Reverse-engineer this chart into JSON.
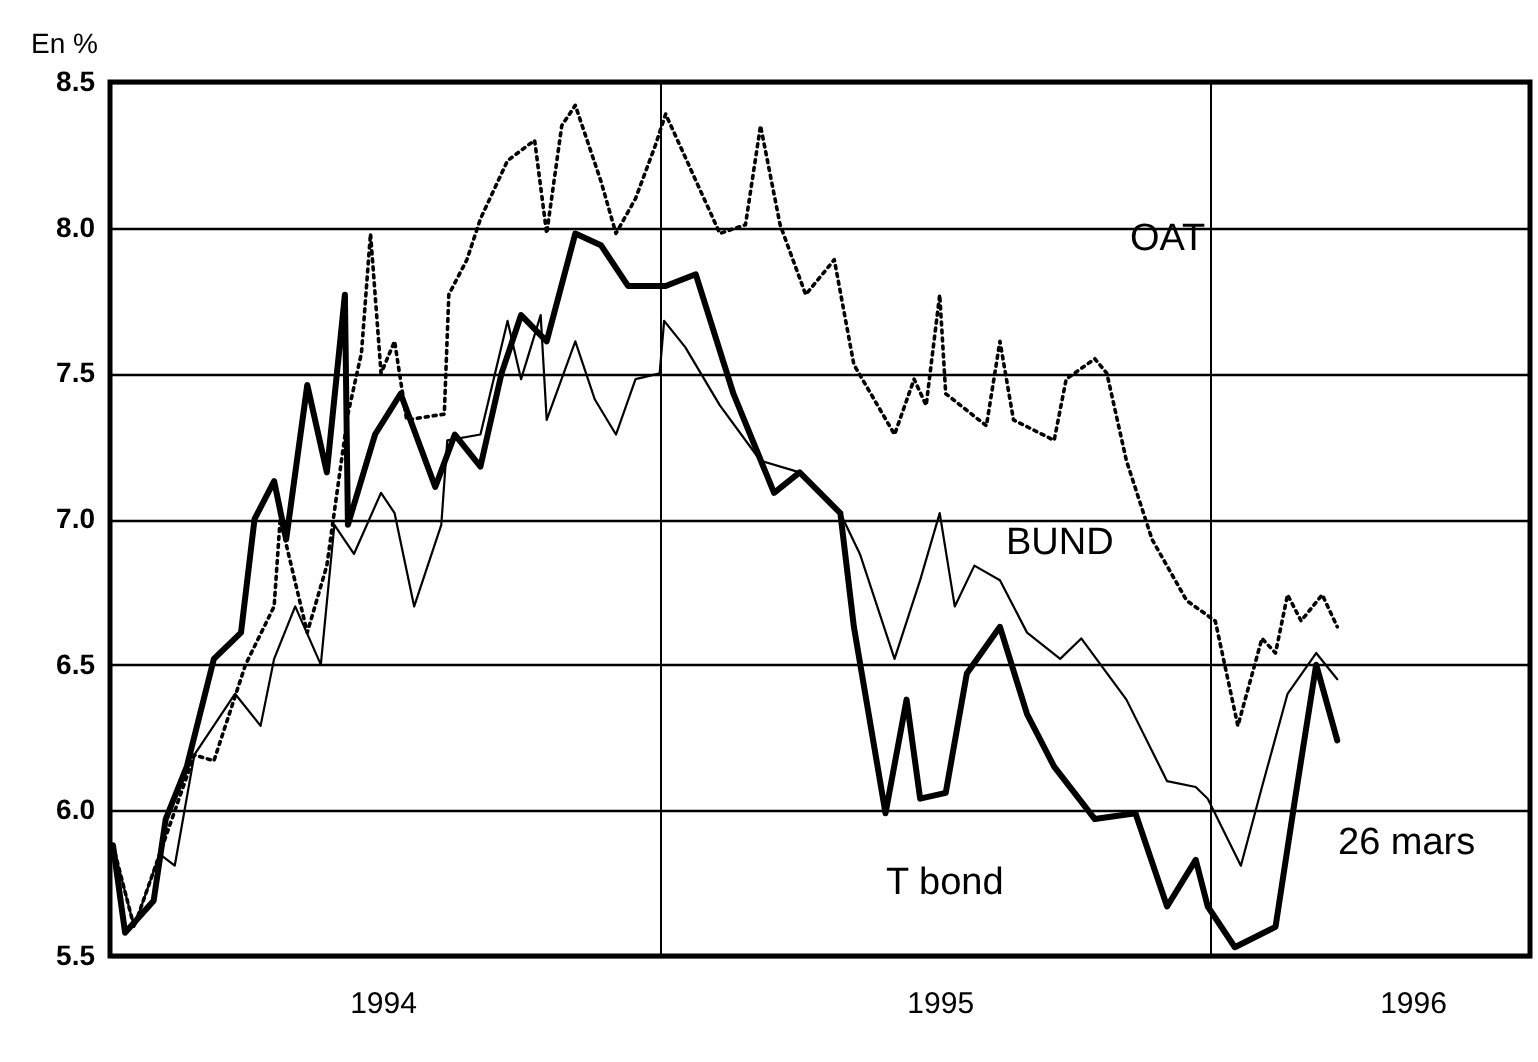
{
  "chart_data": {
    "type": "line",
    "ylabel": "En %",
    "ylim": [
      5.5,
      8.5
    ],
    "yticks": [
      5.5,
      {
        "value": 6,
        "label": "6.0"
      },
      6.5,
      {
        "value": 7,
        "label": "7.0"
      },
      7.5,
      {
        "value": 8,
        "label": "8.0"
      },
      8.5
    ],
    "xlim": [
      "1994-01-01",
      "1996-08-01"
    ],
    "xticks": [
      {
        "value": "1994-07-01",
        "label": "1994"
      },
      {
        "value": "1995-01-01",
        "label": null
      },
      {
        "value": "1995-07-06",
        "label": "1995"
      },
      {
        "value": "1996-01-01",
        "label": null
      },
      {
        "value": "1996-05-15",
        "label": "1996"
      }
    ],
    "grid": true,
    "legend": false,
    "marker": "none",
    "series": [
      {
        "name": "OAT",
        "color": "#000000",
        "line_style": "dotted",
        "x": [
          "1994-01-03",
          "1994-01-17",
          "1994-02-03",
          "1994-02-26",
          "1994-03-11",
          "1994-04-01",
          "1994-04-20",
          "1994-04-24",
          "1994-05-12",
          "1994-05-25",
          "1994-06-08",
          "1994-06-17",
          "1994-06-23",
          "1994-06-30",
          "1994-07-09",
          "1994-07-17",
          "1994-08-11",
          "1994-08-14",
          "1994-08-26",
          "1994-09-04",
          "1994-09-22",
          "1994-10-10",
          "1994-10-18",
          "1994-10-28",
          "1994-11-06",
          "1994-11-23",
          "1994-12-03",
          "1994-12-16",
          "1994-12-29",
          "1995-01-05",
          "1995-02-10",
          "1995-02-27",
          "1995-03-09",
          "1995-03-22",
          "1995-04-08",
          "1995-04-27",
          "1995-05-10",
          "1995-06-06",
          "1995-06-19",
          "1995-06-27",
          "1995-07-06",
          "1995-07-10",
          "1995-08-06",
          "1995-08-15",
          "1995-08-24",
          "1995-09-20",
          "1995-09-28",
          "1995-10-17",
          "1995-10-25",
          "1995-11-07",
          "1995-11-24",
          "1995-12-17",
          "1996-01-05",
          "1996-01-20",
          "1996-02-05",
          "1996-02-14",
          "1996-02-22",
          "1996-03-02",
          "1996-03-16",
          "1996-03-26"
        ],
        "values": [
          5.88,
          5.6,
          5.85,
          6.19,
          6.17,
          6.5,
          6.7,
          7.0,
          6.61,
          6.84,
          7.36,
          7.57,
          7.98,
          7.5,
          7.61,
          7.34,
          7.36,
          7.77,
          7.89,
          8.03,
          8.23,
          8.3,
          7.98,
          8.35,
          8.42,
          8.16,
          7.98,
          8.1,
          8.28,
          8.39,
          7.98,
          8.01,
          8.35,
          8.01,
          7.77,
          7.89,
          7.53,
          7.29,
          7.48,
          7.39,
          7.77,
          7.43,
          7.32,
          7.61,
          7.34,
          7.27,
          7.48,
          7.55,
          7.5,
          7.2,
          6.93,
          6.72,
          6.65,
          6.29,
          6.59,
          6.54,
          6.74,
          6.65,
          6.74,
          6.63
        ]
      },
      {
        "name": "BUND",
        "color": "#000000",
        "line_style": "solid",
        "x": [
          "1994-01-03",
          "1994-01-17",
          "1994-02-03",
          "1994-02-13",
          "1994-02-26",
          "1994-03-25",
          "1994-04-11",
          "1994-04-20",
          "1994-05-04",
          "1994-05-21",
          "1994-05-30",
          "1994-06-12",
          "1994-06-30",
          "1994-07-09",
          "1994-07-22",
          "1994-08-09",
          "1994-08-13",
          "1994-09-04",
          "1994-09-22",
          "1994-10-01",
          "1994-10-14",
          "1994-10-18",
          "1994-11-06",
          "1994-11-19",
          "1994-12-03",
          "1994-12-16",
          "1995-01-01",
          "1995-01-04",
          "1995-01-18",
          "1995-02-10",
          "1995-03-09",
          "1995-04-04",
          "1995-05-01",
          "1995-05-14",
          "1995-06-06",
          "1995-06-23",
          "1995-07-06",
          "1995-07-16",
          "1995-07-29",
          "1995-08-15",
          "1995-09-02",
          "1995-09-24",
          "1995-10-08",
          "1995-11-07",
          "1995-12-04",
          "1995-12-23",
          "1995-12-31",
          "1996-01-22",
          "1996-02-05",
          "1996-02-22",
          "1996-03-12",
          "1996-03-26"
        ],
        "values": [
          5.88,
          5.6,
          5.85,
          5.81,
          6.19,
          6.4,
          6.29,
          6.52,
          6.7,
          6.5,
          6.98,
          6.88,
          7.09,
          7.02,
          6.7,
          6.98,
          7.27,
          7.29,
          7.68,
          7.48,
          7.7,
          7.34,
          7.61,
          7.41,
          7.29,
          7.48,
          7.5,
          7.68,
          7.59,
          7.39,
          7.2,
          7.16,
          7.02,
          6.88,
          6.52,
          6.79,
          7.02,
          6.7,
          6.84,
          6.79,
          6.61,
          6.52,
          6.59,
          6.38,
          6.1,
          6.08,
          6.04,
          5.81,
          6.08,
          6.4,
          6.54,
          6.45
        ]
      },
      {
        "name": "T bond",
        "color": "#000000",
        "line_style": "solid",
        "x": [
          "1994-01-03",
          "1994-01-11",
          "1994-01-30",
          "1994-02-07",
          "1994-02-21",
          "1994-03-11",
          "1994-03-29",
          "1994-04-07",
          "1994-04-20",
          "1994-04-28",
          "1994-05-12",
          "1994-05-25",
          "1994-06-06",
          "1994-06-08",
          "1994-06-26",
          "1994-07-13",
          "1994-08-05",
          "1994-08-18",
          "1994-09-04",
          "1994-09-18",
          "1994-10-01",
          "1994-10-18",
          "1994-11-06",
          "1994-11-23",
          "1994-12-11",
          "1995-01-01",
          "1995-01-05",
          "1995-01-25",
          "1995-02-19",
          "1995-03-18",
          "1995-04-04",
          "1995-05-01",
          "1995-05-10",
          "1995-05-31",
          "1995-06-14",
          "1995-06-23",
          "1995-07-10",
          "1995-07-24",
          "1995-08-15",
          "1995-09-02",
          "1995-09-20",
          "1995-10-17",
          "1995-11-13",
          "1995-12-04",
          "1995-12-23",
          "1995-12-31",
          "1996-01-18",
          "1996-02-14",
          "1996-02-27",
          "1996-03-12",
          "1996-03-26"
        ],
        "values": [
          5.88,
          5.58,
          5.69,
          5.97,
          6.15,
          6.52,
          6.61,
          7.0,
          7.13,
          6.93,
          7.46,
          7.16,
          7.77,
          6.98,
          7.29,
          7.43,
          7.11,
          7.29,
          7.18,
          7.5,
          7.7,
          7.61,
          7.98,
          7.94,
          7.8,
          7.8,
          7.8,
          7.84,
          7.43,
          7.09,
          7.16,
          7.02,
          6.63,
          5.99,
          6.38,
          6.04,
          6.06,
          6.47,
          6.63,
          6.33,
          6.15,
          5.97,
          5.99,
          5.67,
          5.83,
          5.67,
          5.53,
          5.6,
          6.04,
          6.5,
          6.24
        ]
      }
    ],
    "annotations": [
      "26 mars"
    ]
  }
}
